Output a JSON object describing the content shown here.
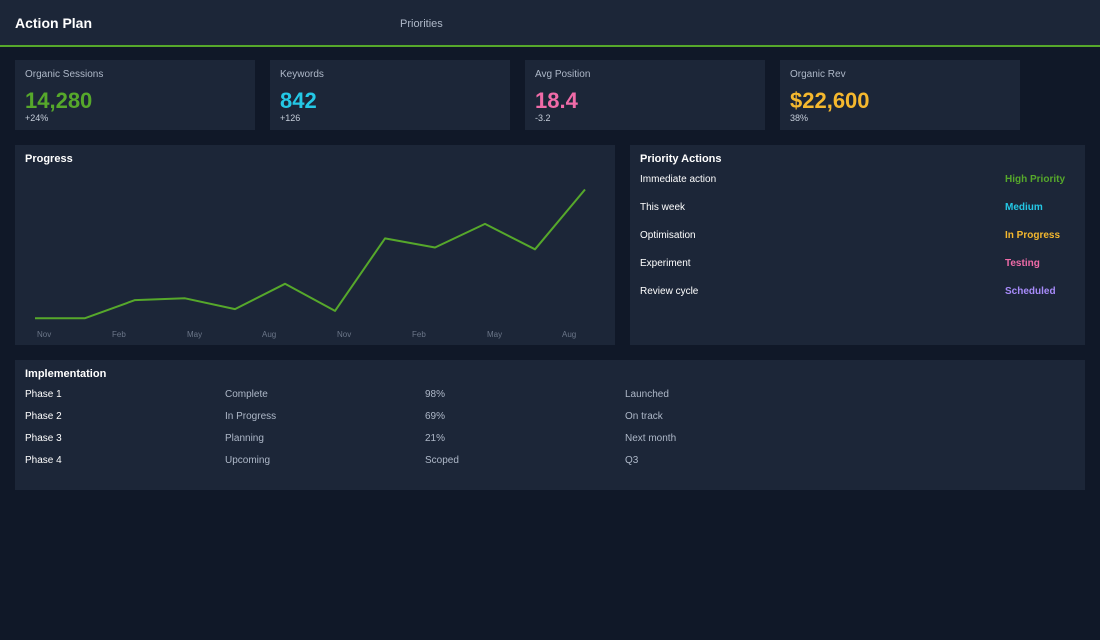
{
  "header": {
    "title": "Action Plan",
    "tab_label": "Priorities",
    "accent": "#56a82b"
  },
  "kpis": [
    {
      "label": "Organic Sessions",
      "value": "14,280",
      "delta": "+24%",
      "color": "#56a82b"
    },
    {
      "label": "Keywords",
      "value": "842",
      "delta": "+126",
      "color": "#24c8e6"
    },
    {
      "label": "Avg Position",
      "value": "18.4",
      "delta": "-3.2",
      "color": "#f06ba8"
    },
    {
      "label": "Organic Rev",
      "value": "$22,600",
      "delta": "38%",
      "color": "#f5b82e"
    }
  ],
  "progress": {
    "title": "Progress"
  },
  "chart_data": {
    "type": "line",
    "title": "Progress",
    "x_tick_labels": [
      "Nov",
      "Feb",
      "May",
      "Aug",
      "Nov",
      "Feb",
      "May",
      "Aug"
    ],
    "series": [
      {
        "values": [
          1,
          1,
          11,
          12,
          6,
          20,
          5,
          45,
          40,
          53,
          39,
          72
        ],
        "color": "#56a82b"
      }
    ],
    "ylim": [
      0,
      80
    ],
    "grid": false
  },
  "priority_actions": {
    "title": "Priority Actions",
    "items": [
      {
        "name": "Immediate action",
        "status": "High Priority",
        "color": "#56a82b"
      },
      {
        "name": "This week",
        "status": "Medium",
        "color": "#24c8e6"
      },
      {
        "name": "Optimisation",
        "status": "In Progress",
        "color": "#f5b82e"
      },
      {
        "name": "Experiment",
        "status": "Testing",
        "color": "#f06ba8"
      },
      {
        "name": "Review cycle",
        "status": "Scheduled",
        "color": "#a78bfa"
      }
    ]
  },
  "implementation": {
    "title": "Implementation",
    "rows": [
      [
        "Phase 1",
        "Complete",
        "98%",
        "Launched"
      ],
      [
        "Phase 2",
        "In Progress",
        "69%",
        "On track"
      ],
      [
        "Phase 3",
        "Planning",
        "21%",
        "Next month"
      ],
      [
        "Phase 4",
        "Upcoming",
        "Scoped",
        "Q3"
      ]
    ]
  }
}
